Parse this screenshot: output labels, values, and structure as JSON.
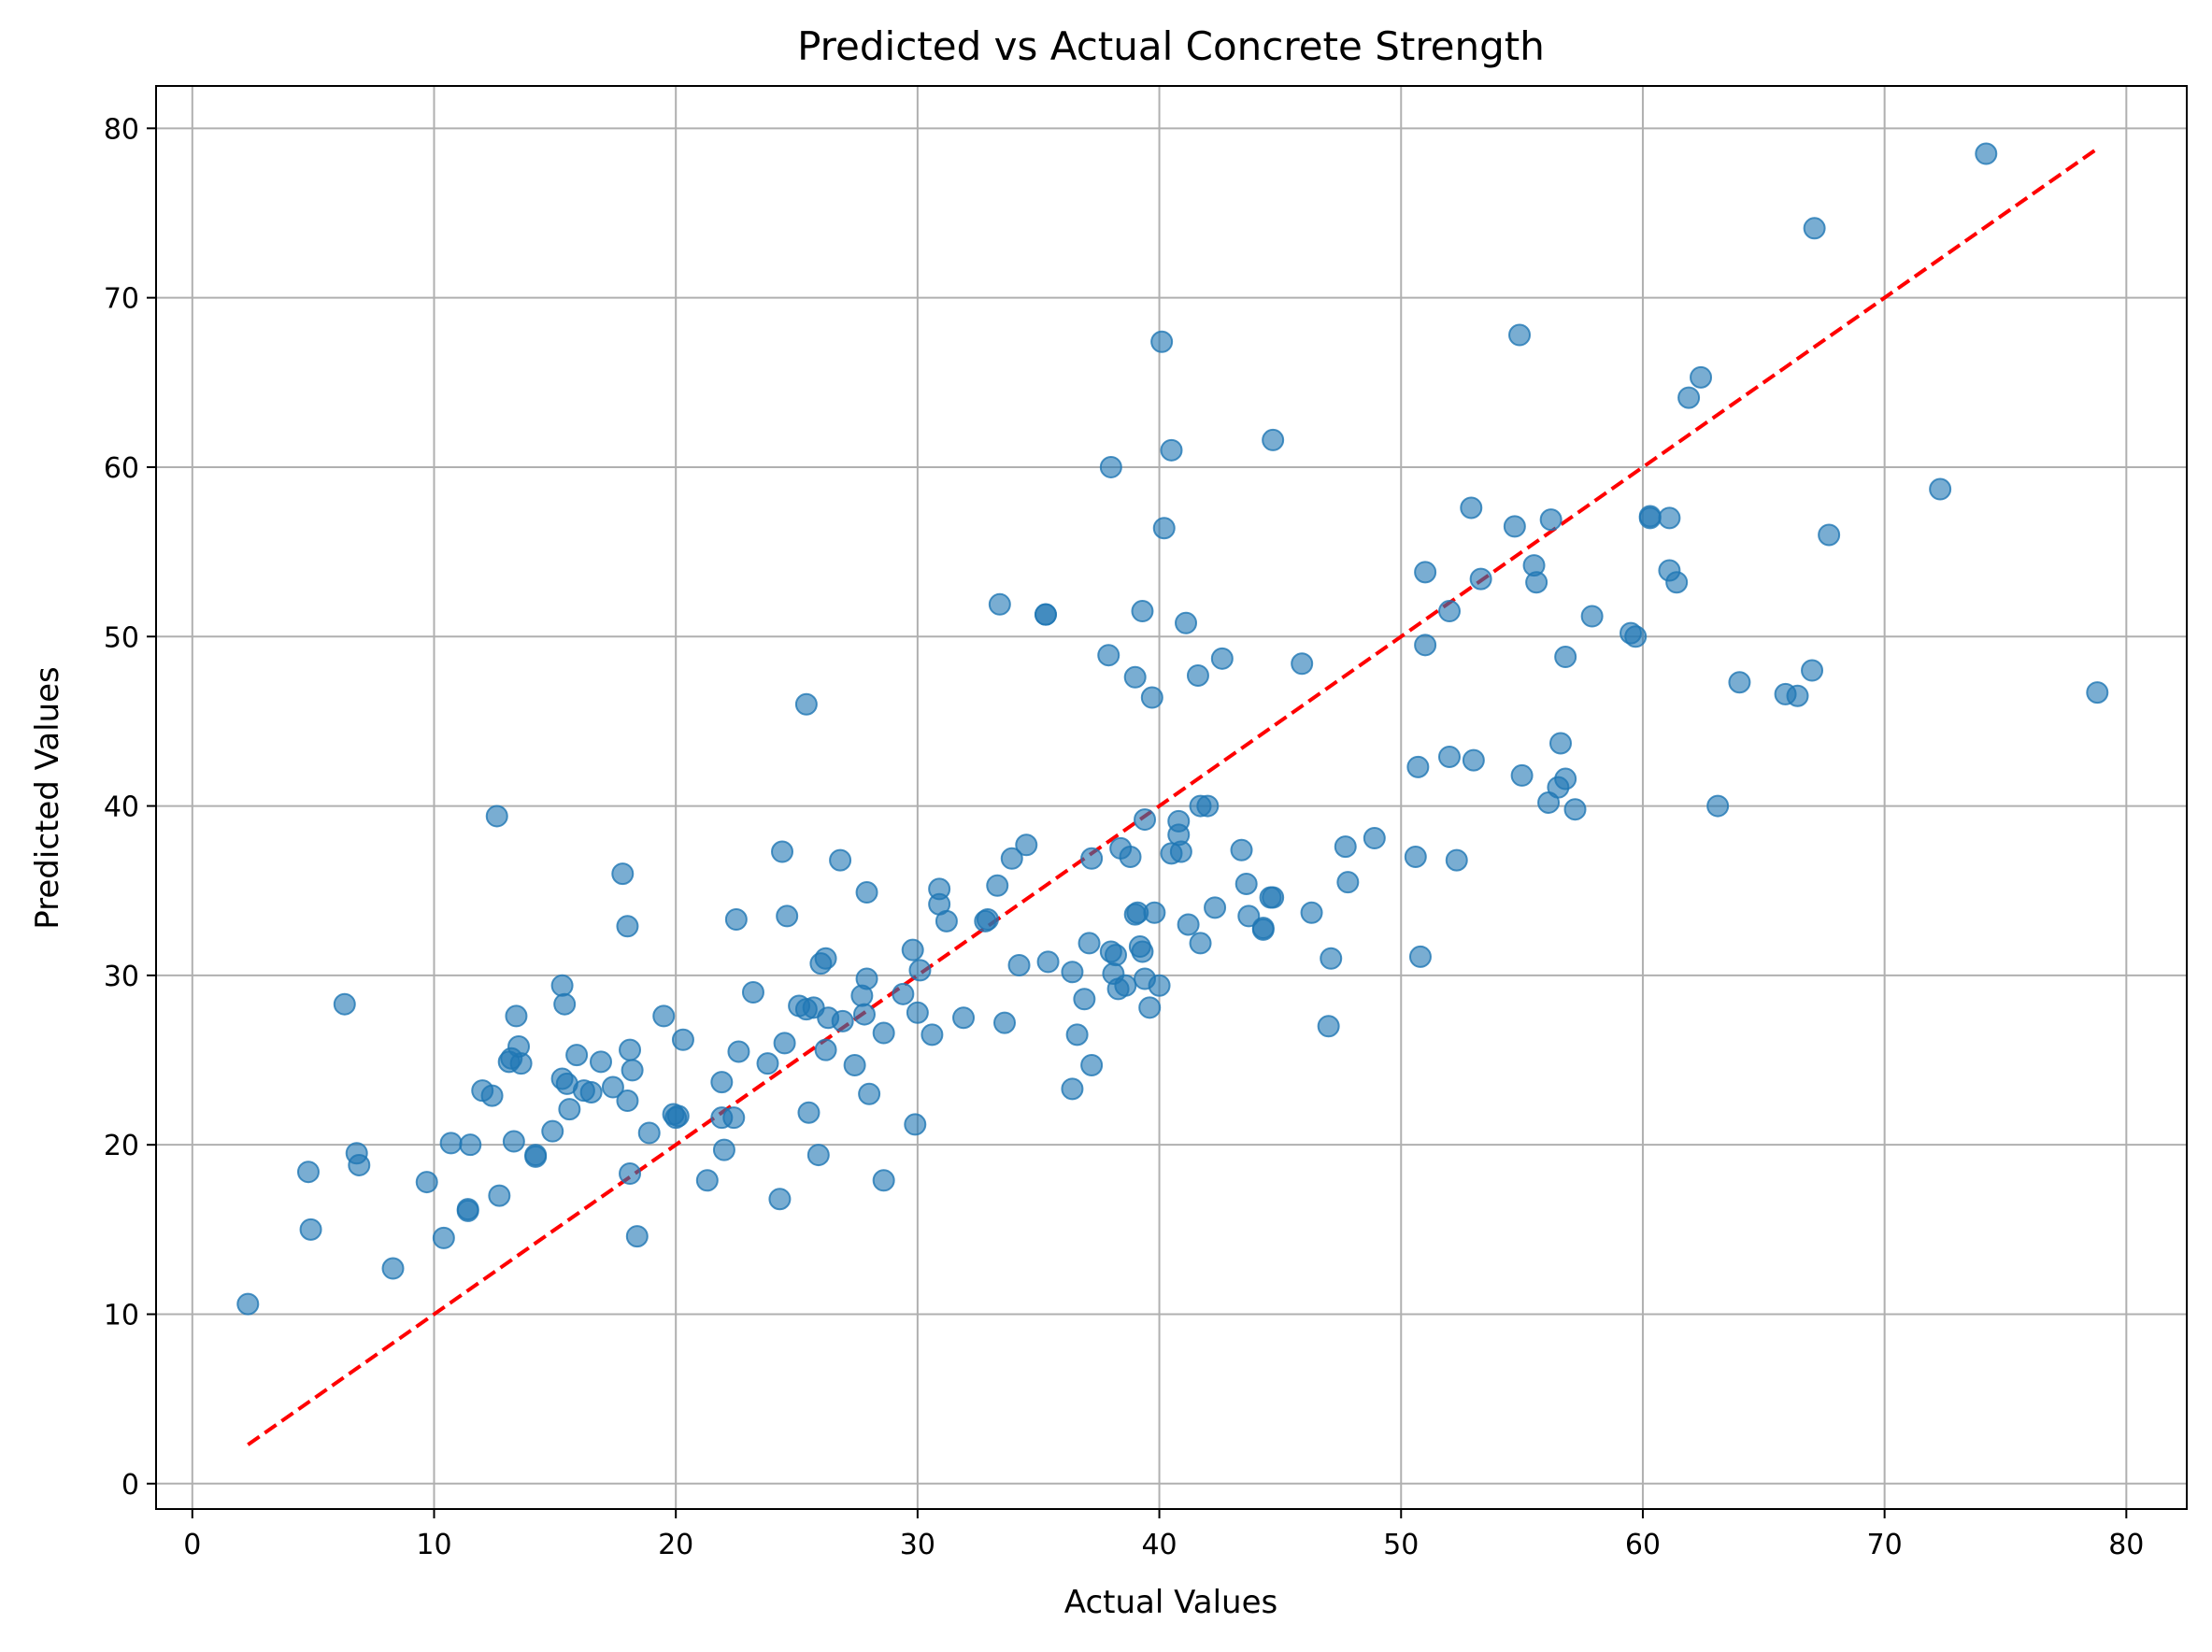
{
  "chart_data": {
    "type": "scatter",
    "title": "Predicted vs Actual Concrete Strength",
    "xlabel": "Actual Values",
    "ylabel": "Predicted Values",
    "xlim": [
      -1.5,
      82.5
    ],
    "ylim": [
      -1.5,
      82.5
    ],
    "xticks": [
      "0",
      "10",
      "20",
      "30",
      "40",
      "50",
      "60",
      "70",
      "80"
    ],
    "yticks": [
      "0",
      "10",
      "20",
      "30",
      "40",
      "50",
      "60",
      "70",
      "80"
    ],
    "grid": true,
    "reference_line": {
      "from": [
        2.3,
        2.3
      ],
      "to": [
        78.8,
        78.8
      ],
      "style": "dashed",
      "color": "#ff0000"
    },
    "point_color": "#1f77b4",
    "points": [
      [
        2.3,
        10.6
      ],
      [
        4.8,
        18.4
      ],
      [
        4.9,
        15.0
      ],
      [
        6.3,
        28.3
      ],
      [
        6.8,
        19.5
      ],
      [
        6.9,
        18.8
      ],
      [
        8.3,
        12.7
      ],
      [
        9.7,
        17.8
      ],
      [
        10.4,
        14.5
      ],
      [
        10.7,
        20.1
      ],
      [
        11.4,
        16.2
      ],
      [
        11.4,
        16.1
      ],
      [
        11.5,
        20.0
      ],
      [
        12.0,
        23.2
      ],
      [
        12.4,
        22.9
      ],
      [
        12.6,
        39.4
      ],
      [
        12.7,
        17.0
      ],
      [
        13.1,
        24.9
      ],
      [
        13.2,
        25.1
      ],
      [
        13.3,
        20.2
      ],
      [
        13.4,
        27.6
      ],
      [
        13.5,
        25.8
      ],
      [
        13.6,
        24.8
      ],
      [
        14.2,
        19.4
      ],
      [
        14.2,
        19.3
      ],
      [
        14.9,
        20.8
      ],
      [
        15.3,
        29.4
      ],
      [
        15.3,
        23.9
      ],
      [
        15.4,
        28.3
      ],
      [
        15.5,
        23.6
      ],
      [
        15.6,
        22.1
      ],
      [
        15.9,
        25.3
      ],
      [
        16.2,
        23.2
      ],
      [
        16.5,
        23.1
      ],
      [
        16.9,
        24.9
      ],
      [
        17.4,
        23.4
      ],
      [
        17.8,
        36.0
      ],
      [
        18.0,
        22.6
      ],
      [
        18.0,
        32.9
      ],
      [
        18.1,
        25.6
      ],
      [
        18.1,
        18.3
      ],
      [
        18.2,
        24.4
      ],
      [
        18.4,
        14.6
      ],
      [
        18.9,
        20.7
      ],
      [
        19.5,
        27.6
      ],
      [
        19.9,
        21.8
      ],
      [
        20.0,
        21.6
      ],
      [
        20.1,
        21.7
      ],
      [
        20.3,
        26.2
      ],
      [
        21.3,
        17.9
      ],
      [
        21.9,
        23.7
      ],
      [
        21.9,
        21.6
      ],
      [
        22.0,
        19.7
      ],
      [
        22.4,
        21.6
      ],
      [
        22.5,
        33.3
      ],
      [
        22.6,
        25.5
      ],
      [
        23.2,
        29.0
      ],
      [
        23.8,
        24.8
      ],
      [
        24.3,
        16.8
      ],
      [
        24.4,
        37.3
      ],
      [
        24.5,
        26.0
      ],
      [
        24.6,
        33.5
      ],
      [
        25.1,
        28.2
      ],
      [
        25.4,
        46.0
      ],
      [
        25.5,
        21.9
      ],
      [
        25.4,
        28.0
      ],
      [
        25.7,
        28.1
      ],
      [
        25.9,
        19.4
      ],
      [
        26.0,
        30.7
      ],
      [
        26.2,
        31.0
      ],
      [
        26.2,
        25.6
      ],
      [
        26.3,
        27.5
      ],
      [
        26.8,
        36.8
      ],
      [
        26.9,
        27.3
      ],
      [
        27.4,
        24.7
      ],
      [
        27.7,
        28.8
      ],
      [
        27.8,
        27.7
      ],
      [
        27.9,
        29.8
      ],
      [
        27.9,
        34.9
      ],
      [
        28.0,
        23.0
      ],
      [
        28.6,
        26.6
      ],
      [
        28.6,
        17.9
      ],
      [
        29.4,
        28.9
      ],
      [
        29.8,
        31.5
      ],
      [
        29.9,
        21.2
      ],
      [
        30.0,
        27.8
      ],
      [
        30.1,
        30.3
      ],
      [
        30.6,
        26.5
      ],
      [
        30.9,
        35.1
      ],
      [
        30.9,
        34.2
      ],
      [
        31.2,
        33.2
      ],
      [
        31.9,
        27.5
      ],
      [
        32.8,
        33.2
      ],
      [
        32.9,
        33.3
      ],
      [
        33.3,
        35.3
      ],
      [
        33.4,
        51.9
      ],
      [
        33.6,
        27.2
      ],
      [
        33.9,
        36.9
      ],
      [
        34.2,
        30.6
      ],
      [
        34.5,
        37.7
      ],
      [
        35.3,
        51.3
      ],
      [
        35.3,
        51.3
      ],
      [
        35.4,
        30.8
      ],
      [
        36.4,
        30.2
      ],
      [
        36.4,
        23.3
      ],
      [
        36.6,
        26.5
      ],
      [
        36.9,
        28.6
      ],
      [
        37.1,
        31.9
      ],
      [
        37.2,
        36.9
      ],
      [
        37.2,
        24.7
      ],
      [
        37.9,
        48.9
      ],
      [
        38.0,
        60.0
      ],
      [
        38.0,
        31.4
      ],
      [
        38.1,
        30.1
      ],
      [
        38.2,
        31.2
      ],
      [
        38.3,
        29.2
      ],
      [
        38.4,
        37.5
      ],
      [
        38.6,
        29.4
      ],
      [
        38.8,
        37.0
      ],
      [
        39.0,
        47.6
      ],
      [
        39.0,
        33.6
      ],
      [
        39.1,
        33.7
      ],
      [
        39.2,
        31.7
      ],
      [
        39.3,
        31.4
      ],
      [
        39.3,
        51.5
      ],
      [
        39.4,
        39.2
      ],
      [
        39.4,
        29.8
      ],
      [
        39.6,
        28.1
      ],
      [
        39.7,
        46.4
      ],
      [
        39.8,
        33.7
      ],
      [
        40.0,
        29.4
      ],
      [
        40.1,
        67.4
      ],
      [
        40.2,
        56.4
      ],
      [
        40.5,
        61.0
      ],
      [
        40.5,
        37.2
      ],
      [
        40.8,
        38.3
      ],
      [
        40.8,
        39.1
      ],
      [
        40.9,
        37.3
      ],
      [
        41.1,
        50.8
      ],
      [
        41.2,
        33.0
      ],
      [
        41.6,
        47.7
      ],
      [
        41.7,
        31.9
      ],
      [
        41.7,
        40.0
      ],
      [
        42.0,
        40.0
      ],
      [
        42.3,
        34.0
      ],
      [
        42.6,
        48.7
      ],
      [
        43.4,
        37.4
      ],
      [
        43.6,
        35.4
      ],
      [
        43.7,
        33.5
      ],
      [
        44.3,
        32.8
      ],
      [
        44.3,
        32.7
      ],
      [
        44.6,
        34.6
      ],
      [
        44.7,
        34.6
      ],
      [
        44.7,
        61.6
      ],
      [
        45.9,
        48.4
      ],
      [
        46.3,
        33.7
      ],
      [
        47.0,
        27.0
      ],
      [
        47.1,
        31.0
      ],
      [
        47.7,
        37.6
      ],
      [
        47.8,
        35.5
      ],
      [
        48.9,
        38.1
      ],
      [
        50.6,
        37.0
      ],
      [
        50.7,
        42.3
      ],
      [
        50.8,
        31.1
      ],
      [
        51.0,
        53.8
      ],
      [
        51.0,
        49.5
      ],
      [
        52.0,
        51.5
      ],
      [
        52.0,
        42.9
      ],
      [
        52.3,
        36.8
      ],
      [
        52.9,
        57.6
      ],
      [
        53.0,
        42.7
      ],
      [
        53.3,
        53.4
      ],
      [
        54.7,
        56.5
      ],
      [
        54.9,
        67.8
      ],
      [
        55.0,
        41.8
      ],
      [
        55.5,
        54.2
      ],
      [
        55.6,
        53.2
      ],
      [
        56.1,
        40.2
      ],
      [
        56.2,
        56.9
      ],
      [
        56.5,
        41.1
      ],
      [
        56.6,
        43.7
      ],
      [
        56.8,
        41.6
      ],
      [
        56.8,
        48.8
      ],
      [
        57.2,
        39.8
      ],
      [
        57.9,
        51.2
      ],
      [
        59.5,
        50.2
      ],
      [
        59.7,
        50.0
      ],
      [
        60.3,
        57.1
      ],
      [
        60.3,
        57.0
      ],
      [
        61.1,
        57.0
      ],
      [
        61.1,
        53.9
      ],
      [
        61.4,
        53.2
      ],
      [
        61.9,
        64.1
      ],
      [
        62.4,
        65.3
      ],
      [
        63.1,
        40.0
      ],
      [
        64.0,
        47.3
      ],
      [
        65.9,
        46.6
      ],
      [
        66.4,
        46.5
      ],
      [
        67.0,
        48.0
      ],
      [
        67.1,
        74.1
      ],
      [
        67.7,
        56.0
      ],
      [
        72.3,
        58.7
      ],
      [
        74.2,
        78.5
      ],
      [
        78.8,
        46.7
      ]
    ]
  }
}
